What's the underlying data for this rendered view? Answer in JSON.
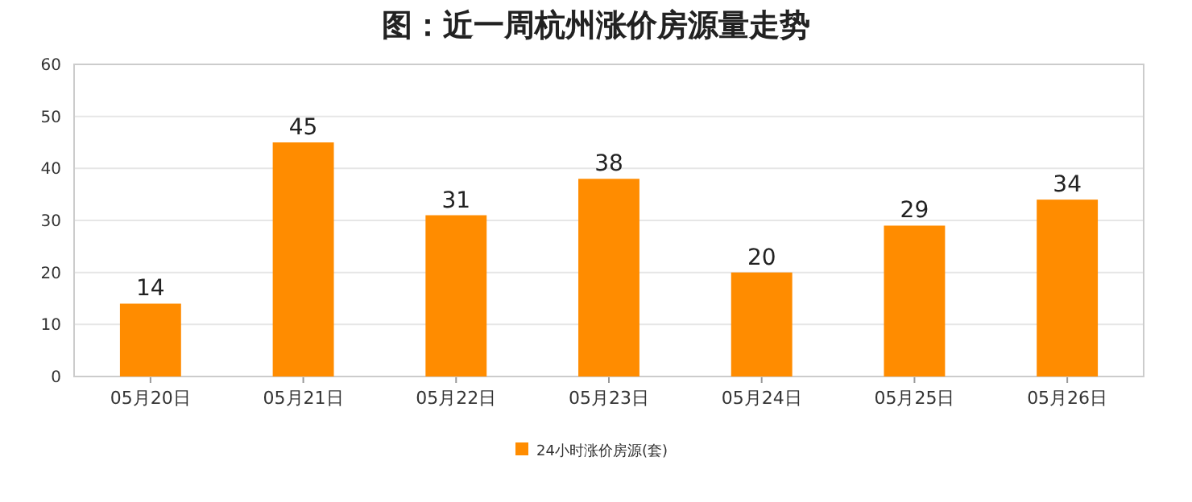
{
  "chart_data": {
    "type": "bar",
    "title": "图：近一周杭州涨价房源量走势",
    "categories": [
      "05月20日",
      "05月21日",
      "05月22日",
      "05月23日",
      "05月24日",
      "05月25日",
      "05月26日"
    ],
    "series": [
      {
        "name": "24小时涨价房源(套)",
        "color": "#ff8c00",
        "values": [
          14,
          45,
          31,
          38,
          20,
          29,
          34
        ]
      }
    ],
    "ylim": [
      0,
      60
    ],
    "yticks": [
      0,
      10,
      20,
      30,
      40,
      50,
      60
    ],
    "grid": "y",
    "legend": "bottom",
    "data_labels": true
  }
}
